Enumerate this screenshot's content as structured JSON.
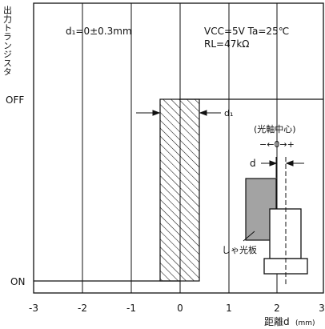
{
  "ylabel": "出力トランジスタ",
  "y_states": {
    "off": "OFF",
    "on": "ON"
  },
  "x_ticks": [
    "-3",
    "-2",
    "-1",
    "0",
    "1",
    "2",
    "3"
  ],
  "xlabel": {
    "main": "距離d",
    "unit": "(mm)"
  },
  "annotations": {
    "tolerance": "d₁=0±0.3mm",
    "conditions_line1": "VCC=5V  Ta=25℃",
    "conditions_line2": "RL=47kΩ",
    "d1_marker": "d₁",
    "optical_axis": "(光軸中心)",
    "axis_direction": "−←0→+",
    "d_marker": "d",
    "shield_plate": "しゃ光板"
  },
  "chart_data": {
    "type": "diagram",
    "x_range": [
      -3,
      3
    ],
    "y_states": [
      "ON",
      "OFF"
    ],
    "switching_band": {
      "center": 0,
      "tolerance": 0.3
    },
    "step": {
      "x_switch": 0,
      "off_level": "OFF",
      "on_level": "ON"
    }
  }
}
